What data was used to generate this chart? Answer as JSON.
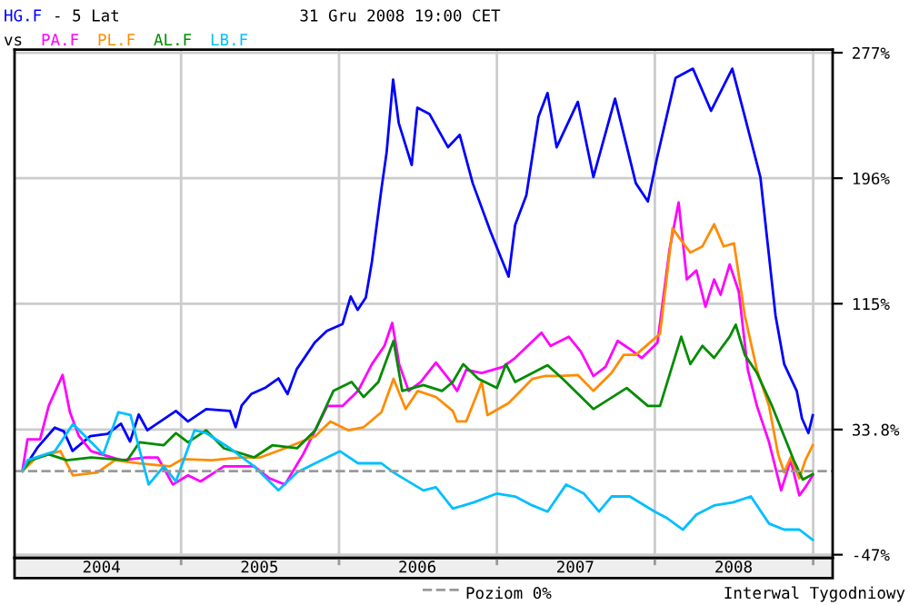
{
  "chart_data": {
    "type": "line",
    "title": "- 5 Lat",
    "subtitle": "31 Gru 2008 19:00 CET",
    "legend_title": "vs",
    "annotations": [
      "Interwal Tygodniowy"
    ],
    "legend": "bottom",
    "grid": true,
    "line_style": "solid",
    "xlim": [
      "2003-12-13",
      "2009-02-15"
    ],
    "xticks": [
      {
        "value": "2004-07-01",
        "label": "2004"
      },
      {
        "value": "2005-01-01",
        "label": null
      },
      {
        "value": "2005-07-01",
        "label": "2005"
      },
      {
        "value": "2006-01-01",
        "label": null
      },
      {
        "value": "2006-07-01",
        "label": "2006"
      },
      {
        "value": "2007-01-01",
        "label": null
      },
      {
        "value": "2007-07-01",
        "label": "2007"
      },
      {
        "value": "2008-01-01",
        "label": null
      },
      {
        "value": "2008-07-01",
        "label": "2008"
      },
      {
        "value": "2009-01-01",
        "label": null
      }
    ],
    "ylim": [
      -49,
      279
    ],
    "yticks": [
      {
        "value": -47,
        "label": "-47%"
      },
      {
        "value": 33.8,
        "label": "33.8%"
      },
      {
        "value": 115,
        "label": "115%"
      },
      {
        "value": 196,
        "label": "196%"
      },
      {
        "value": 277,
        "label": "277%"
      }
    ],
    "ref_lines": [
      {
        "axis": "y",
        "value": 7,
        "label": "Poziom 0%",
        "color": "#999999",
        "line_style": "dashed"
      }
    ],
    "series": [
      {
        "name": "HG.F",
        "color": "#0000ff",
        "x": [
          "2003-12-31",
          "2004-02-05",
          "2004-03-15",
          "2004-04-05",
          "2004-04-25",
          "2004-06-05",
          "2004-07-15",
          "2004-08-15",
          "2004-09-05",
          "2004-09-25",
          "2004-10-15",
          "2004-12-20",
          "2005-01-17",
          "2005-02-28",
          "2005-04-24",
          "2005-05-07",
          "2005-05-21",
          "2005-06-12",
          "2005-07-16",
          "2005-08-14",
          "2005-09-04",
          "2005-09-25",
          "2005-11-06",
          "2005-12-04",
          "2006-01-09",
          "2006-01-28",
          "2006-02-13",
          "2006-03-04",
          "2006-03-18",
          "2006-04-09",
          "2006-04-21",
          "2006-05-06",
          "2006-05-19",
          "2006-06-18",
          "2006-07-01",
          "2006-07-29",
          "2006-09-10",
          "2006-10-07",
          "2006-11-06",
          "2006-12-17",
          "2007-01-28",
          "2007-02-12",
          "2007-03-10",
          "2007-04-07",
          "2007-04-28",
          "2007-05-19",
          "2007-07-07",
          "2007-08-12",
          "2007-10-01",
          "2007-11-18",
          "2007-12-16",
          "2008-01-06",
          "2008-02-18",
          "2008-03-29",
          "2008-05-10",
          "2008-06-28",
          "2008-07-27",
          "2008-09-01",
          "2008-10-06",
          "2008-10-26",
          "2008-11-24",
          "2008-12-06",
          "2008-12-21",
          "2008-12-31"
        ],
        "values": [
          7,
          22.5,
          35,
          32.6,
          20,
          29.5,
          31,
          37.6,
          26,
          43.5,
          33.3,
          45.8,
          39,
          47,
          45.8,
          35.3,
          49.3,
          56.7,
          61,
          66.8,
          56.7,
          72.6,
          90,
          97.5,
          101.8,
          119.7,
          111,
          119,
          142,
          189,
          212.6,
          259.7,
          231.7,
          204.5,
          241.5,
          237.5,
          216,
          224,
          192.8,
          161.7,
          132.5,
          165.7,
          185,
          235.7,
          251,
          216,
          245.3,
          196.7,
          247.3,
          192.8,
          181,
          209,
          260.8,
          266.7,
          239.5,
          266.7,
          235.7,
          196.7,
          107.3,
          76,
          58.7,
          41,
          31.5,
          43
        ]
      },
      {
        "name": "PA.F",
        "color": "#ff00ff",
        "x": [
          "2003-12-31",
          "2004-01-12",
          "2004-02-10",
          "2004-03-01",
          "2004-04-02",
          "2004-04-19",
          "2004-05-10",
          "2004-06-07",
          "2004-08-16",
          "2004-10-11",
          "2004-11-08",
          "2004-12-13",
          "2005-01-17",
          "2005-02-15",
          "2005-04-10",
          "2005-06-19",
          "2005-07-24",
          "2005-08-29",
          "2005-10-10",
          "2005-11-07",
          "2005-12-05",
          "2006-01-09",
          "2006-02-14",
          "2006-03-18",
          "2006-04-16",
          "2006-05-04",
          "2006-05-20",
          "2006-06-11",
          "2006-07-09",
          "2006-08-13",
          "2006-09-17",
          "2006-10-01",
          "2006-10-22",
          "2006-11-27",
          "2007-01-15",
          "2007-02-12",
          "2007-04-14",
          "2007-05-05",
          "2007-06-16",
          "2007-07-14",
          "2007-08-12",
          "2007-09-09",
          "2007-10-07",
          "2007-11-04",
          "2007-12-02",
          "2008-01-07",
          "2008-02-04",
          "2008-02-25",
          "2008-03-15",
          "2008-04-06",
          "2008-04-27",
          "2008-05-17",
          "2008-06-01",
          "2008-06-22",
          "2008-07-13",
          "2008-08-03",
          "2008-08-24",
          "2008-09-21",
          "2008-10-19",
          "2008-11-10",
          "2008-11-30",
          "2008-12-14",
          "2008-12-31"
        ],
        "values": [
          7,
          27.5,
          27.5,
          49,
          69,
          45,
          29.5,
          19.8,
          14,
          15.8,
          15.8,
          -1.7,
          4.2,
          0.3,
          10,
          10,
          2.3,
          -1.7,
          17.8,
          33.3,
          49,
          49,
          58.7,
          76,
          87.8,
          102.6,
          76,
          58.7,
          64.5,
          77,
          64.5,
          58.7,
          72.3,
          70.3,
          74.2,
          80,
          96.3,
          87.8,
          93.7,
          84,
          68.3,
          74.2,
          91,
          85.8,
          80,
          89.8,
          150,
          180.4,
          130.7,
          136.5,
          113,
          130.7,
          120.8,
          140.3,
          122.8,
          72.3,
          49,
          25.6,
          -5.5,
          14,
          -8.7,
          -3.5,
          4.2
        ]
      },
      {
        "name": "PL.F",
        "color": "#ff8c00",
        "x": [
          "2003-12-31",
          "2004-02-02",
          "2004-03-28",
          "2004-04-26",
          "2004-06-21",
          "2004-08-01",
          "2004-09-27",
          "2004-12-06",
          "2005-01-04",
          "2005-03-13",
          "2005-05-21",
          "2005-07-03",
          "2005-08-29",
          "2005-11-07",
          "2005-12-12",
          "2006-01-23",
          "2006-02-27",
          "2006-04-09",
          "2006-05-07",
          "2006-06-04",
          "2006-07-02",
          "2006-08-13",
          "2006-09-21",
          "2006-10-01",
          "2006-10-22",
          "2006-11-27",
          "2006-12-10",
          "2007-01-28",
          "2007-03-24",
          "2007-04-21",
          "2007-05-26",
          "2007-07-07",
          "2007-08-12",
          "2007-09-23",
          "2007-10-21",
          "2007-11-18",
          "2008-01-13",
          "2008-02-11",
          "2008-03-02",
          "2008-03-23",
          "2008-04-20",
          "2008-05-17",
          "2008-06-08",
          "2008-07-02",
          "2008-07-27",
          "2008-08-24",
          "2008-09-21",
          "2008-10-12",
          "2008-10-26",
          "2008-11-10",
          "2008-11-30",
          "2008-12-14",
          "2008-12-31"
        ],
        "values": [
          7,
          15.8,
          19.8,
          4.2,
          6,
          14,
          12,
          10,
          14.7,
          14,
          15.8,
          15.8,
          21.7,
          29.5,
          39,
          33.3,
          35.3,
          45,
          66.5,
          47,
          58.7,
          54.8,
          45.8,
          39,
          39,
          64.5,
          43.1,
          50.8,
          66.5,
          68.3,
          68.3,
          69,
          58.7,
          70.3,
          82,
          82,
          95.6,
          163.7,
          155.9,
          148,
          152,
          166.3,
          152,
          154,
          107.3,
          72.3,
          49,
          17.8,
          6.1,
          15.8,
          2.3,
          14,
          23.6
        ]
      },
      {
        "name": "AL.F",
        "color": "#008c00",
        "x": [
          "2003-12-31",
          "2004-01-19",
          "2004-03-01",
          "2004-04-12",
          "2004-06-07",
          "2004-08-30",
          "2004-09-27",
          "2004-11-22",
          "2004-12-20",
          "2005-01-17",
          "2005-02-28",
          "2005-04-10",
          "2005-06-19",
          "2005-07-31",
          "2005-09-26",
          "2005-11-07",
          "2005-12-19",
          "2006-01-30",
          "2006-02-27",
          "2006-04-02",
          "2006-05-07",
          "2006-05-27",
          "2006-07-15",
          "2006-08-27",
          "2006-09-21",
          "2006-10-15",
          "2006-11-19",
          "2007-01-01",
          "2007-01-22",
          "2007-02-12",
          "2007-04-28",
          "2007-06-02",
          "2007-08-12",
          "2007-10-28",
          "2007-12-16",
          "2008-01-13",
          "2008-03-02",
          "2008-03-23",
          "2008-04-20",
          "2008-05-17",
          "2008-06-22",
          "2008-07-06",
          "2008-07-27",
          "2008-08-24",
          "2008-09-28",
          "2008-10-26",
          "2008-11-17",
          "2008-12-08",
          "2008-12-31"
        ],
        "values": [
          7,
          14,
          17.8,
          14,
          15.8,
          14,
          25.6,
          23.7,
          31.5,
          25.6,
          33.3,
          21.7,
          15.8,
          23.6,
          21.7,
          33.3,
          58.7,
          64.5,
          54.8,
          64.5,
          91,
          58.7,
          62.5,
          58.7,
          64.5,
          76,
          66.5,
          60.6,
          76,
          64.5,
          75.3,
          66.5,
          47,
          60.6,
          49,
          49,
          93.7,
          76,
          87.8,
          80,
          93.7,
          101.5,
          82,
          70.3,
          49,
          29.5,
          14,
          1.5,
          5
        ]
      },
      {
        "name": "LB.F",
        "color": "#00bfff",
        "x": [
          "2003-12-31",
          "2004-01-12",
          "2004-03-15",
          "2004-04-26",
          "2004-06-07",
          "2004-07-05",
          "2004-08-09",
          "2004-09-06",
          "2004-10-18",
          "2004-11-22",
          "2004-12-20",
          "2005-02-01",
          "2005-02-28",
          "2005-04-24",
          "2005-06-19",
          "2005-08-14",
          "2005-09-26",
          "2005-11-07",
          "2006-01-03",
          "2006-02-14",
          "2006-04-09",
          "2006-05-07",
          "2006-07-15",
          "2006-08-13",
          "2006-09-21",
          "2006-11-08",
          "2007-01-01",
          "2007-02-12",
          "2007-03-24",
          "2007-04-28",
          "2007-06-10",
          "2007-07-21",
          "2007-08-25",
          "2007-09-23",
          "2007-11-04",
          "2008-01-01",
          "2008-01-27",
          "2008-03-06",
          "2008-04-06",
          "2008-05-17",
          "2008-06-29",
          "2008-08-10",
          "2008-09-21",
          "2008-10-26",
          "2008-11-30",
          "2008-12-31"
        ],
        "values": [
          7,
          14,
          19.8,
          37.3,
          25.6,
          17.8,
          45,
          43.1,
          -1.7,
          10,
          0.3,
          33.3,
          31.5,
          21.7,
          10,
          -5.5,
          6.1,
          12,
          19.8,
          12,
          12,
          6.1,
          -5.5,
          -3.5,
          -17.2,
          -13.3,
          -7.5,
          -9.4,
          -15.2,
          -19.2,
          -1.7,
          -7.5,
          -19.2,
          -9.4,
          -9.4,
          -19.2,
          -23,
          -30.8,
          -21.1,
          -15.2,
          -13.3,
          -9.4,
          -26.9,
          -30.8,
          -30.8,
          -37.4
        ]
      }
    ]
  }
}
